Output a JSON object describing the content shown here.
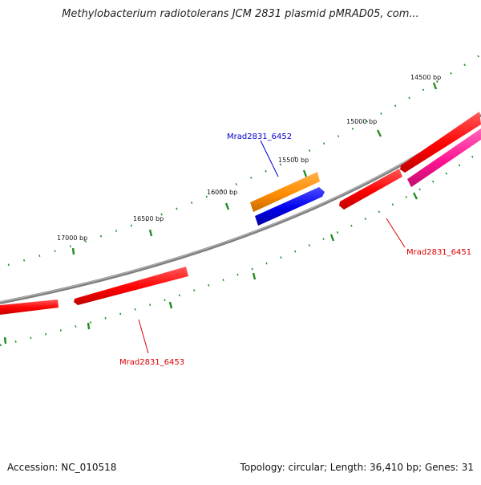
{
  "title": "Methylobacterium radiotolerans JCM 2831 plasmid pMRAD05, com...",
  "footer": {
    "accession": "Accession: NC_010518",
    "summary": "Topology: circular; Length: 36,410 bp; Genes: 31"
  },
  "ticks": [
    "14500 bp",
    "15000 bp",
    "15500 bp",
    "16000 bp",
    "16500 bp",
    "17000 bp"
  ],
  "gene_labels": {
    "g6452": "Mrad2831_6452",
    "g6451": "Mrad2831_6451",
    "g6453": "Mrad2831_6453"
  },
  "colors": {
    "backbone": "#808080",
    "cds_red": "#ff0000",
    "cds_pink": "#ff1493",
    "cds_orange": "#ff8c00",
    "cds_blue": "#0000ee",
    "tick_green": "#228b22",
    "label_blue": "#0000cc",
    "label_red": "#dd0000"
  }
}
